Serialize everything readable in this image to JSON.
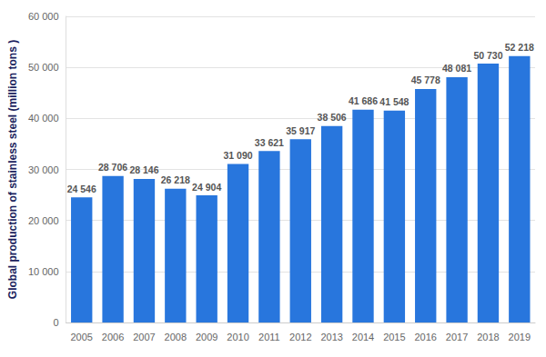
{
  "chart_data": {
    "type": "bar",
    "y_label": "Global production of stainless steel (million tons )",
    "categories": [
      "2005",
      "2006",
      "2007",
      "2008",
      "2009",
      "2010",
      "2011",
      "2012",
      "2013",
      "2014",
      "2015",
      "2016",
      "2017",
      "2018",
      "2019"
    ],
    "values": [
      24546,
      28706,
      28146,
      26218,
      24904,
      31090,
      33621,
      35917,
      38506,
      41686,
      41548,
      45778,
      48081,
      50730,
      52218
    ],
    "value_labels": [
      "24 546",
      "28 706",
      "28 146",
      "26 218",
      "24 904",
      "31 090",
      "33 621",
      "35 917",
      "38 506",
      "41 686",
      "41 548",
      "45 778",
      "48 081",
      "50 730",
      "52 218"
    ],
    "color": "#2876dd",
    "ylim": [
      0,
      60000
    ],
    "yticks": [
      0,
      {
        "value": 10000,
        "label": "10 000"
      },
      {
        "value": 20000,
        "label": "20 000"
      },
      {
        "value": 30000,
        "label": "30 000"
      },
      {
        "value": 40000,
        "label": "40 000"
      },
      {
        "value": 50000,
        "label": "50 000"
      },
      {
        "value": 60000,
        "label": "60 000"
      }
    ],
    "grid": true,
    "data_labels": true
  }
}
